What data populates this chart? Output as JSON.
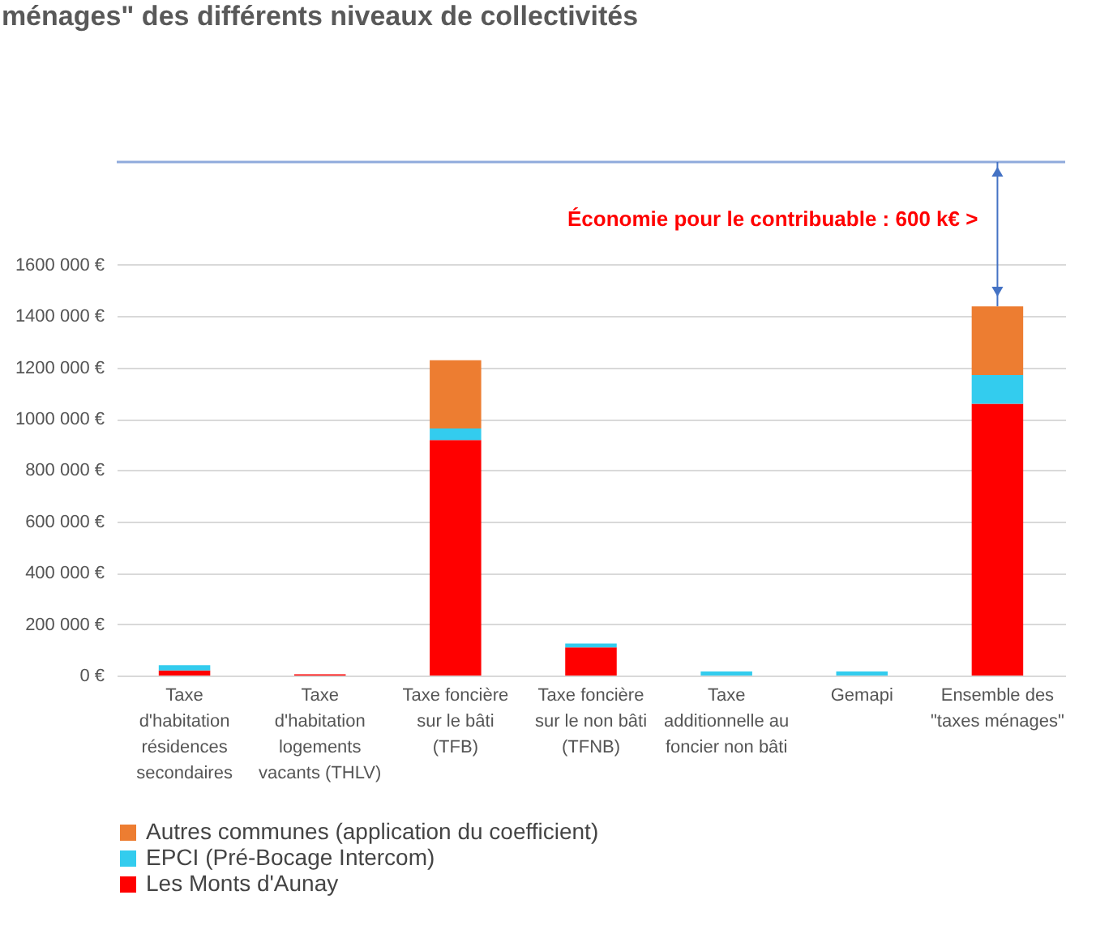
{
  "chart_data": {
    "type": "bar",
    "title": "ménages\" des différents niveaux de collectivités",
    "stacked": true,
    "categories": [
      "Taxe d'habitation résidences secondaires",
      "Taxe d'habitation logements vacants (THLV)",
      "Taxe foncière sur le bâti (TFB)",
      "Taxe foncière sur le non bâti (TFNB)",
      "Taxe additionnelle au foncier non bâti",
      "Gemapi",
      "Ensemble des \"taxes ménages\""
    ],
    "series": [
      {
        "name": "Les Monts d'Aunay",
        "color": "#ff0000",
        "values": [
          20000,
          5000,
          917000,
          110000,
          0,
          0,
          1058000
        ]
      },
      {
        "name": "EPCI (Pré-Bocage Intercom)",
        "color": "#33ccee",
        "values": [
          20000,
          0,
          45000,
          15000,
          16000,
          16000,
          112000
        ]
      },
      {
        "name": "Autres communes (application du coefficient)",
        "color": "#ed7d31",
        "values": [
          0,
          0,
          266000,
          0,
          0,
          0,
          268000
        ]
      }
    ],
    "ylim": [
      0,
      2000000
    ],
    "yticks": [
      {
        "value": 0,
        "label": "0 €"
      },
      {
        "value": 200000,
        "label": "200 000 €"
      },
      {
        "value": 400000,
        "label": "400 000 €"
      },
      {
        "value": 600000,
        "label": "600 000 €"
      },
      {
        "value": 800000,
        "label": "800 000 €"
      },
      {
        "value": 1000000,
        "label": "1000 000 €"
      },
      {
        "value": 1200000,
        "label": "1200 000 €"
      },
      {
        "value": 1400000,
        "label": "1400 000 €"
      },
      {
        "value": 1600000,
        "label": "1600 000 €"
      }
    ],
    "ref_lines": [
      {
        "axis": "y",
        "value": 2000000,
        "color": "#8faadc"
      }
    ],
    "annotations": [
      "Économie pour le contribuable : 600 k€ >"
    ],
    "grid": "y",
    "legend": "bottom"
  }
}
